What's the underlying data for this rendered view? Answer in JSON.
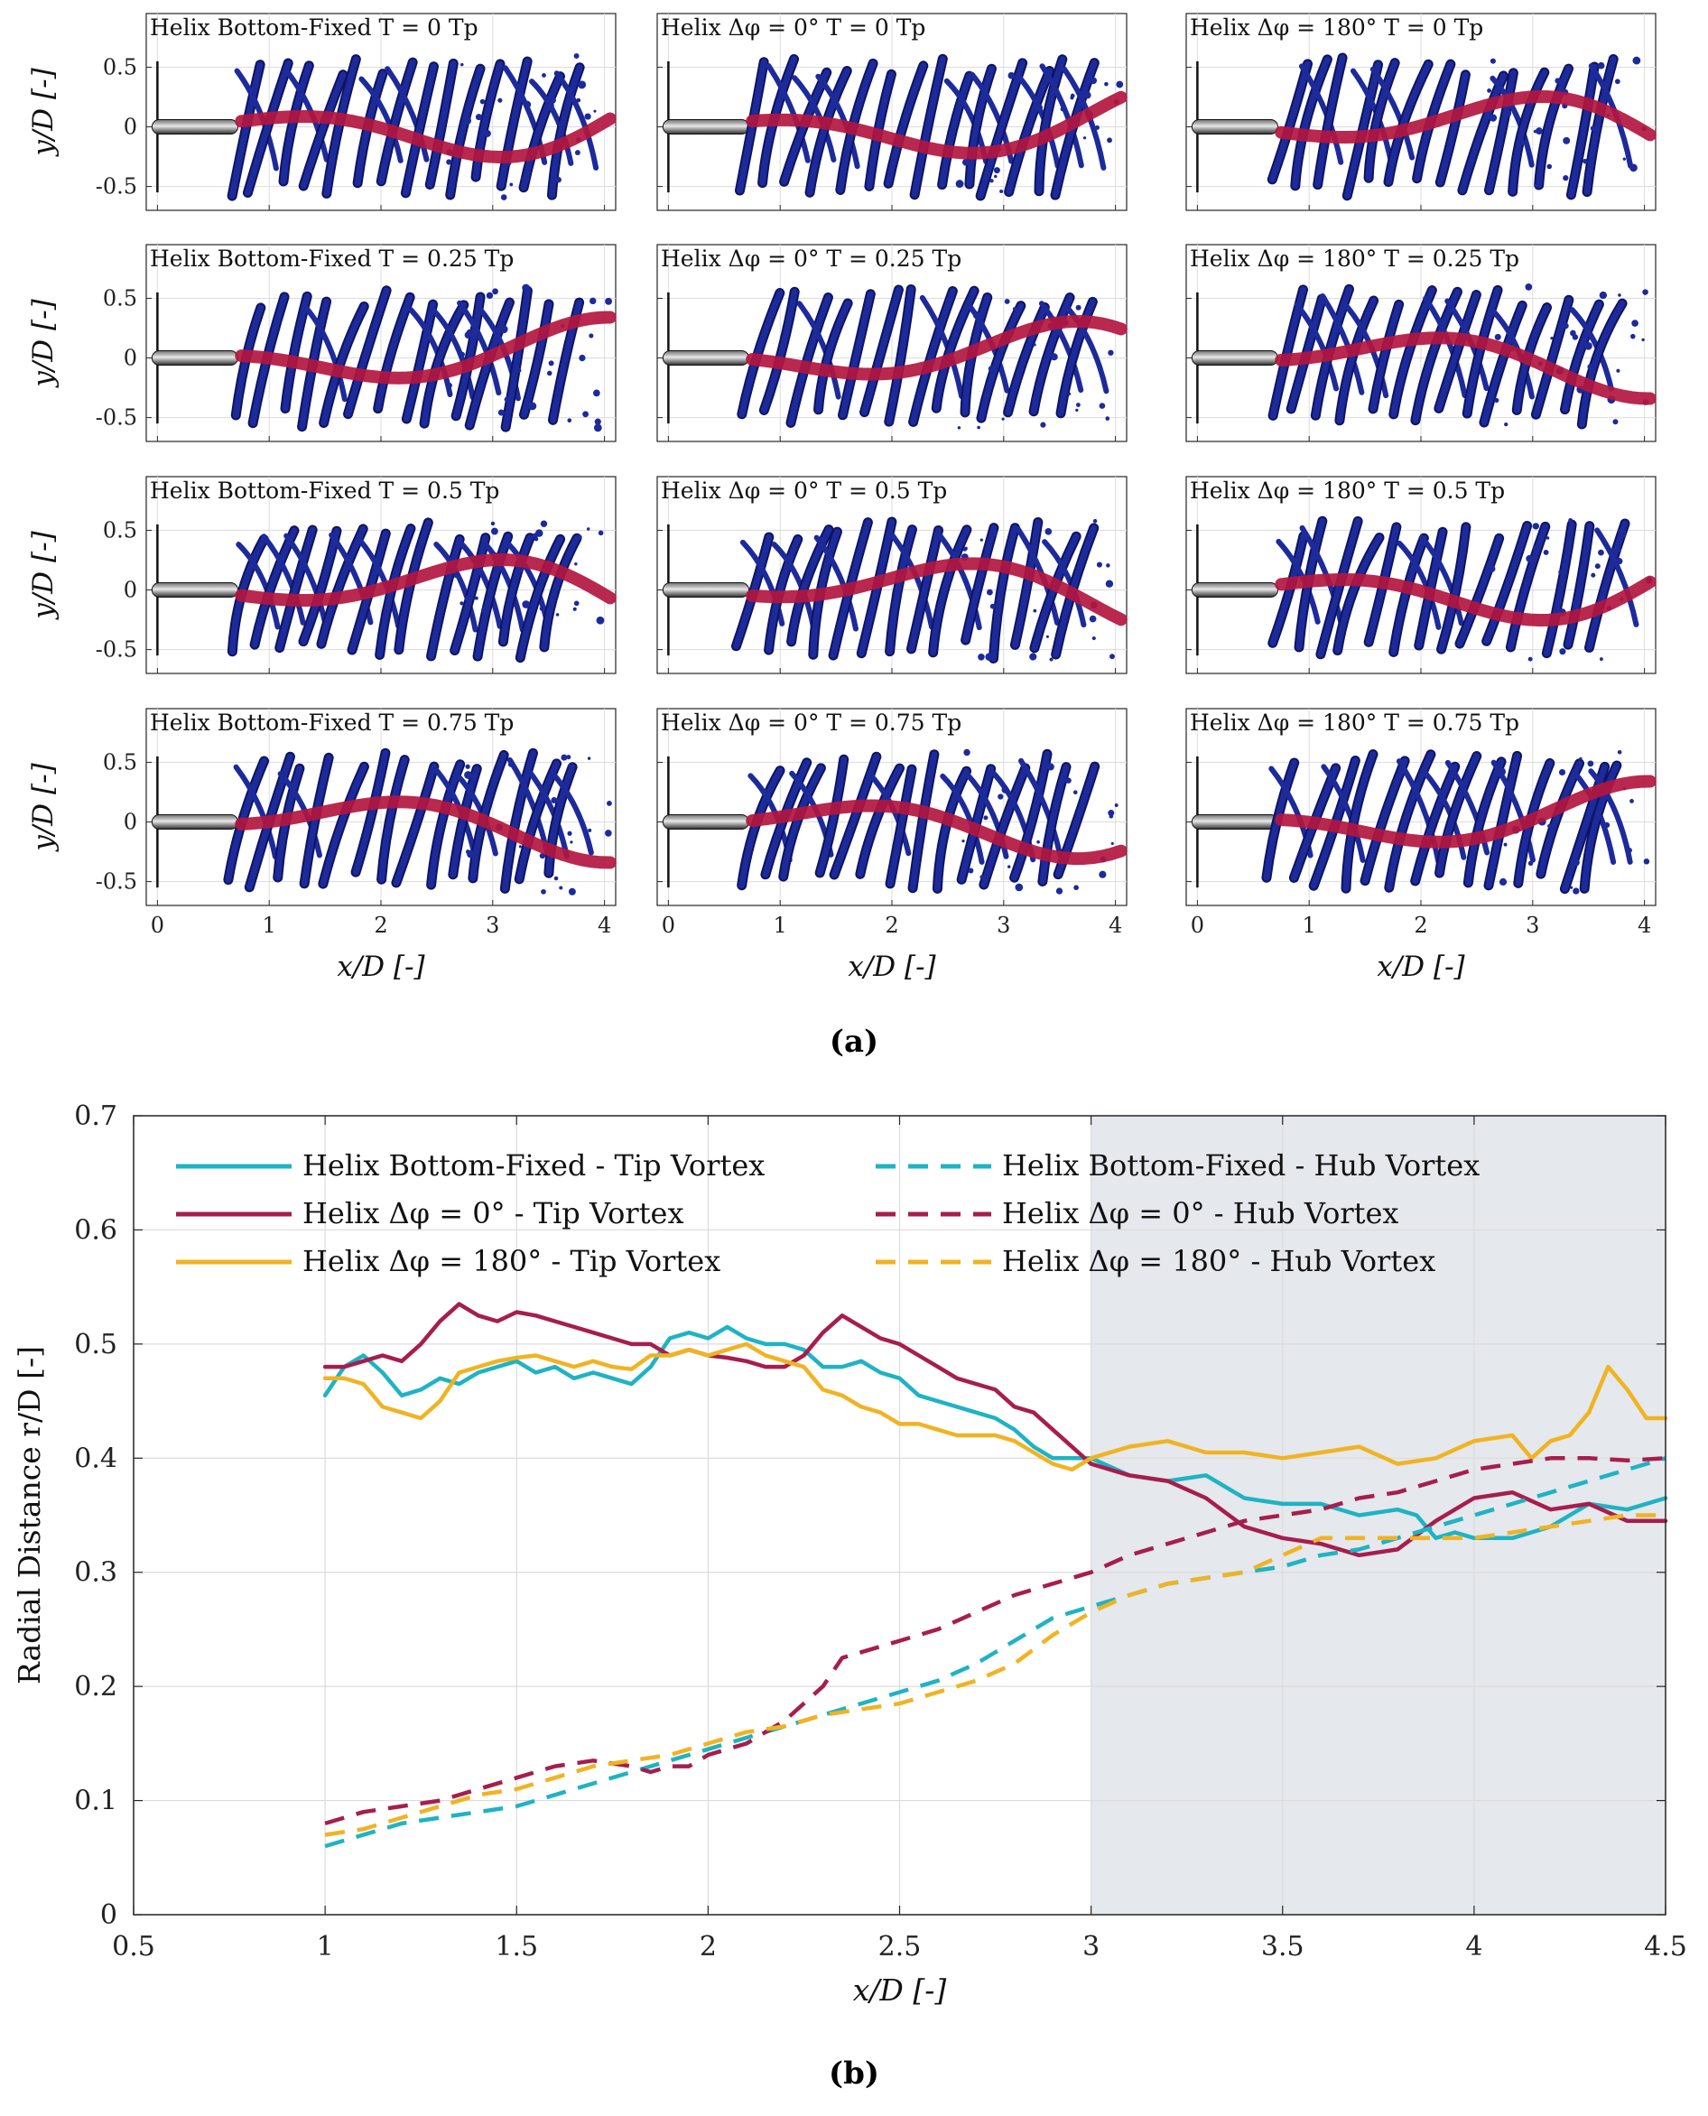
{
  "colors": {
    "cyan": "#1fb3c3",
    "crimson": "#a61e4d",
    "gold": "#f0b323",
    "vortex": "#1d2a9a",
    "vortex_dark": "#0e1460",
    "hub_path": "#b3163f",
    "shade": "#e5e8ec",
    "grid": "#dcdcdc"
  },
  "panel_a": {
    "caption": "(a)",
    "y_label": "y/D [-]",
    "x_label": "x/D [-]",
    "x_ticks": [
      "0",
      "1",
      "2",
      "3",
      "4"
    ],
    "y_ticks": [
      "0.5",
      "0",
      "-0.5"
    ],
    "x_range": [
      -0.1,
      4.1
    ],
    "y_range": [
      -0.7,
      0.95
    ],
    "columns": [
      {
        "case": "Helix Bottom-Fixed"
      },
      {
        "case": "Helix Δφ = 0°"
      },
      {
        "case": "Helix Δφ = 180°"
      }
    ],
    "rows": [
      {
        "phase": "T = 0 Tp"
      },
      {
        "phase": "T = 0.25 Tp"
      },
      {
        "phase": "T = 0.5 Tp"
      },
      {
        "phase": "T = 0.75 Tp"
      }
    ],
    "panel_titles": [
      [
        "Helix Bottom-Fixed T = 0 Tp",
        "Helix Δφ = 0° T = 0 Tp",
        "Helix Δφ = 180° T = 0 Tp"
      ],
      [
        "Helix Bottom-Fixed T = 0.25 Tp",
        "Helix Δφ = 0° T = 0.25 Tp",
        "Helix Δφ = 180° T = 0.25 Tp"
      ],
      [
        "Helix Bottom-Fixed T = 0.5 Tp",
        "Helix Δφ = 0° T = 0.5 Tp",
        "Helix Δφ = 180° T = 0.5 Tp"
      ],
      [
        "Helix Bottom-Fixed T = 0.75 Tp",
        "Helix Δφ = 0° T = 0.75 Tp",
        "Helix Δφ = 180° T = 0.75 Tp"
      ]
    ]
  },
  "chart_data": {
    "type": "line",
    "title": "",
    "caption": "(b)",
    "xlabel": "x/D [-]",
    "ylabel": "Radial Distance r/D [-]",
    "xlim": [
      0.5,
      4.5
    ],
    "ylim": [
      0,
      0.7
    ],
    "x_ticks": [
      0.5,
      1,
      1.5,
      2,
      2.5,
      3,
      3.5,
      4,
      4.5
    ],
    "x_tick_labels": [
      "0.5",
      "1",
      "1.5",
      "2",
      "2.5",
      "3",
      "3.5",
      "4",
      "4.5"
    ],
    "y_ticks": [
      0,
      0.1,
      0.2,
      0.3,
      0.4,
      0.5,
      0.6,
      0.7
    ],
    "y_tick_labels": [
      "0",
      "0.1",
      "0.2",
      "0.3",
      "0.4",
      "0.5",
      "0.6",
      "0.7"
    ],
    "grid": true,
    "shaded_region": {
      "x": [
        3,
        4.5
      ]
    },
    "legend_position": "top-left",
    "series": [
      {
        "name": "Helix Bottom-Fixed - Tip Vortex",
        "color": "cyan",
        "style": "solid",
        "x": [
          1.0,
          1.05,
          1.1,
          1.15,
          1.2,
          1.25,
          1.3,
          1.35,
          1.4,
          1.45,
          1.5,
          1.55,
          1.6,
          1.65,
          1.7,
          1.75,
          1.8,
          1.85,
          1.9,
          1.95,
          2.0,
          2.05,
          2.1,
          2.15,
          2.2,
          2.25,
          2.3,
          2.35,
          2.4,
          2.45,
          2.5,
          2.55,
          2.6,
          2.65,
          2.7,
          2.75,
          2.8,
          2.85,
          2.9,
          2.95,
          3.0,
          3.1,
          3.2,
          3.3,
          3.4,
          3.5,
          3.6,
          3.7,
          3.8,
          3.85,
          3.9,
          3.95,
          4.0,
          4.1,
          4.2,
          4.3,
          4.4,
          4.5
        ],
        "y": [
          0.455,
          0.48,
          0.49,
          0.475,
          0.455,
          0.46,
          0.47,
          0.465,
          0.475,
          0.48,
          0.485,
          0.475,
          0.48,
          0.47,
          0.475,
          0.47,
          0.465,
          0.48,
          0.505,
          0.51,
          0.505,
          0.515,
          0.505,
          0.5,
          0.5,
          0.495,
          0.48,
          0.48,
          0.485,
          0.475,
          0.47,
          0.455,
          0.45,
          0.445,
          0.44,
          0.435,
          0.425,
          0.41,
          0.4,
          0.4,
          0.4,
          0.385,
          0.38,
          0.385,
          0.365,
          0.36,
          0.36,
          0.35,
          0.355,
          0.35,
          0.33,
          0.335,
          0.33,
          0.33,
          0.34,
          0.36,
          0.355,
          0.365
        ]
      },
      {
        "name": "Helix Δφ = 0° - Tip Vortex",
        "color": "crimson",
        "style": "solid",
        "x": [
          1.0,
          1.05,
          1.1,
          1.15,
          1.2,
          1.25,
          1.3,
          1.35,
          1.4,
          1.45,
          1.5,
          1.55,
          1.6,
          1.65,
          1.7,
          1.75,
          1.8,
          1.85,
          1.9,
          1.95,
          2.0,
          2.05,
          2.1,
          2.15,
          2.2,
          2.25,
          2.3,
          2.35,
          2.4,
          2.45,
          2.5,
          2.55,
          2.6,
          2.65,
          2.7,
          2.75,
          2.8,
          2.85,
          2.9,
          2.95,
          3.0,
          3.1,
          3.2,
          3.3,
          3.4,
          3.5,
          3.6,
          3.7,
          3.8,
          3.9,
          4.0,
          4.1,
          4.2,
          4.3,
          4.4,
          4.5
        ],
        "y": [
          0.48,
          0.48,
          0.485,
          0.49,
          0.485,
          0.5,
          0.52,
          0.535,
          0.525,
          0.52,
          0.528,
          0.525,
          0.52,
          0.515,
          0.51,
          0.505,
          0.5,
          0.5,
          0.49,
          0.495,
          0.49,
          0.488,
          0.485,
          0.48,
          0.48,
          0.49,
          0.51,
          0.525,
          0.515,
          0.505,
          0.5,
          0.49,
          0.48,
          0.47,
          0.465,
          0.46,
          0.445,
          0.44,
          0.425,
          0.41,
          0.395,
          0.385,
          0.38,
          0.365,
          0.34,
          0.33,
          0.325,
          0.315,
          0.32,
          0.345,
          0.365,
          0.37,
          0.355,
          0.36,
          0.345,
          0.345
        ]
      },
      {
        "name": "Helix Δφ = 180° - Tip Vortex",
        "color": "gold",
        "style": "solid",
        "x": [
          1.0,
          1.05,
          1.1,
          1.15,
          1.2,
          1.25,
          1.3,
          1.35,
          1.4,
          1.45,
          1.5,
          1.55,
          1.6,
          1.65,
          1.7,
          1.75,
          1.8,
          1.85,
          1.9,
          1.95,
          2.0,
          2.05,
          2.1,
          2.15,
          2.2,
          2.25,
          2.3,
          2.35,
          2.4,
          2.45,
          2.5,
          2.55,
          2.6,
          2.65,
          2.7,
          2.75,
          2.8,
          2.85,
          2.9,
          2.95,
          3.0,
          3.1,
          3.2,
          3.3,
          3.4,
          3.5,
          3.6,
          3.7,
          3.8,
          3.9,
          4.0,
          4.1,
          4.15,
          4.2,
          4.25,
          4.3,
          4.35,
          4.4,
          4.45,
          4.5
        ],
        "y": [
          0.47,
          0.47,
          0.465,
          0.445,
          0.44,
          0.435,
          0.45,
          0.475,
          0.48,
          0.485,
          0.488,
          0.49,
          0.485,
          0.48,
          0.485,
          0.48,
          0.478,
          0.49,
          0.49,
          0.495,
          0.49,
          0.495,
          0.5,
          0.49,
          0.485,
          0.48,
          0.46,
          0.455,
          0.445,
          0.44,
          0.43,
          0.43,
          0.425,
          0.42,
          0.42,
          0.42,
          0.415,
          0.405,
          0.395,
          0.39,
          0.4,
          0.41,
          0.415,
          0.405,
          0.405,
          0.4,
          0.405,
          0.41,
          0.395,
          0.4,
          0.415,
          0.42,
          0.4,
          0.415,
          0.42,
          0.44,
          0.48,
          0.46,
          0.435,
          0.435
        ]
      },
      {
        "name": "Helix Bottom-Fixed - Hub Vortex",
        "color": "cyan",
        "style": "dashed",
        "x": [
          1.0,
          1.1,
          1.2,
          1.3,
          1.4,
          1.5,
          1.6,
          1.7,
          1.8,
          1.9,
          2.0,
          2.1,
          2.2,
          2.3,
          2.4,
          2.5,
          2.6,
          2.7,
          2.8,
          2.9,
          3.0,
          3.1,
          3.2,
          3.3,
          3.4,
          3.5,
          3.6,
          3.7,
          3.8,
          3.9,
          4.0,
          4.1,
          4.2,
          4.3,
          4.4,
          4.5
        ],
        "y": [
          0.06,
          0.07,
          0.08,
          0.085,
          0.09,
          0.095,
          0.105,
          0.115,
          0.125,
          0.135,
          0.145,
          0.155,
          0.165,
          0.175,
          0.185,
          0.195,
          0.205,
          0.22,
          0.24,
          0.26,
          0.27,
          0.28,
          0.29,
          0.295,
          0.3,
          0.305,
          0.315,
          0.32,
          0.33,
          0.34,
          0.35,
          0.36,
          0.37,
          0.38,
          0.39,
          0.4
        ]
      },
      {
        "name": "Helix Δφ = 0° - Hub Vortex",
        "color": "crimson",
        "style": "dashed",
        "x": [
          1.0,
          1.1,
          1.2,
          1.3,
          1.4,
          1.5,
          1.6,
          1.7,
          1.8,
          1.85,
          1.9,
          1.95,
          2.0,
          2.1,
          2.2,
          2.3,
          2.35,
          2.4,
          2.5,
          2.6,
          2.7,
          2.8,
          2.9,
          3.0,
          3.1,
          3.2,
          3.3,
          3.4,
          3.5,
          3.6,
          3.7,
          3.8,
          3.9,
          4.0,
          4.1,
          4.2,
          4.3,
          4.4,
          4.5
        ],
        "y": [
          0.08,
          0.09,
          0.095,
          0.1,
          0.11,
          0.12,
          0.13,
          0.135,
          0.13,
          0.125,
          0.13,
          0.13,
          0.14,
          0.15,
          0.17,
          0.2,
          0.225,
          0.23,
          0.24,
          0.25,
          0.265,
          0.28,
          0.29,
          0.3,
          0.315,
          0.325,
          0.335,
          0.345,
          0.35,
          0.355,
          0.365,
          0.37,
          0.38,
          0.39,
          0.395,
          0.4,
          0.4,
          0.398,
          0.4
        ]
      },
      {
        "name": "Helix Δφ = 180° - Hub Vortex",
        "color": "gold",
        "style": "dashed",
        "x": [
          1.0,
          1.1,
          1.2,
          1.3,
          1.4,
          1.5,
          1.6,
          1.7,
          1.8,
          1.9,
          2.0,
          2.1,
          2.2,
          2.3,
          2.4,
          2.5,
          2.6,
          2.7,
          2.8,
          2.9,
          3.0,
          3.1,
          3.2,
          3.3,
          3.4,
          3.5,
          3.6,
          3.7,
          3.8,
          3.9,
          4.0,
          4.1,
          4.2,
          4.3,
          4.4,
          4.5
        ],
        "y": [
          0.07,
          0.075,
          0.085,
          0.095,
          0.105,
          0.11,
          0.12,
          0.13,
          0.135,
          0.14,
          0.15,
          0.16,
          0.165,
          0.175,
          0.18,
          0.185,
          0.195,
          0.205,
          0.22,
          0.245,
          0.265,
          0.28,
          0.29,
          0.295,
          0.3,
          0.315,
          0.33,
          0.33,
          0.33,
          0.33,
          0.33,
          0.335,
          0.34,
          0.345,
          0.35,
          0.35
        ]
      }
    ]
  }
}
